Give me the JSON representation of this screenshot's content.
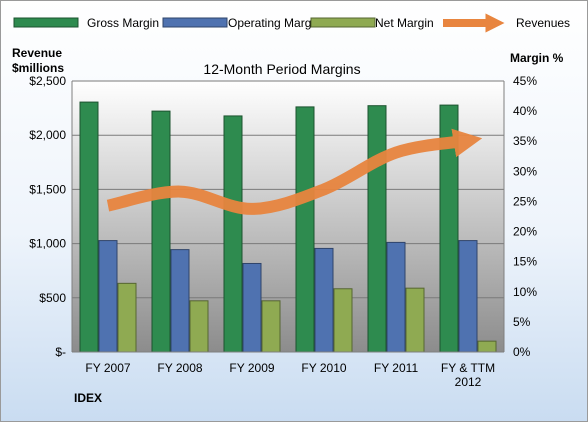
{
  "chart_data": {
    "type": "bar",
    "title": "12-Month Period Margins",
    "left_axis_title": [
      "Revenue",
      "$millions"
    ],
    "right_axis_title": "Margin %",
    "footer_label": "IDEX",
    "categories": [
      [
        "FY 2007"
      ],
      [
        "FY 2008"
      ],
      [
        "FY 2009"
      ],
      [
        "FY 2010"
      ],
      [
        "FY 2011"
      ],
      [
        "FY & TTM",
        "2012"
      ]
    ],
    "series": [
      {
        "name": "Gross Margin",
        "axis": "right",
        "kind": "bar",
        "color": "#2e8b4f",
        "values": [
          41.5,
          40.0,
          39.2,
          40.7,
          40.9,
          41.0
        ]
      },
      {
        "name": "Operating Margin",
        "axis": "right",
        "kind": "bar",
        "color": "#4f72b0",
        "values": [
          18.5,
          17.0,
          14.7,
          17.2,
          18.2,
          18.5
        ]
      },
      {
        "name": "Net Margin",
        "axis": "right",
        "kind": "bar",
        "color": "#8faa52",
        "values": [
          11.4,
          8.5,
          8.5,
          10.5,
          10.6,
          1.8
        ]
      },
      {
        "name": "Revenues",
        "axis": "left",
        "kind": "line",
        "color": "#e8853f",
        "values": [
          1350,
          1480,
          1320,
          1500,
          1840,
          1950
        ]
      }
    ],
    "left_axis": {
      "min": 0,
      "max": 2500,
      "step": 500,
      "tick_labels": [
        "$-",
        "$500",
        "$1,000",
        "$1,500",
        "$2,000",
        "$2,500"
      ]
    },
    "right_axis": {
      "min": 0,
      "max": 45,
      "step": 5,
      "tick_labels": [
        "0%",
        "5%",
        "10%",
        "15%",
        "20%",
        "25%",
        "30%",
        "35%",
        "40%",
        "45%"
      ]
    },
    "grid": true,
    "legend_position": "top"
  }
}
